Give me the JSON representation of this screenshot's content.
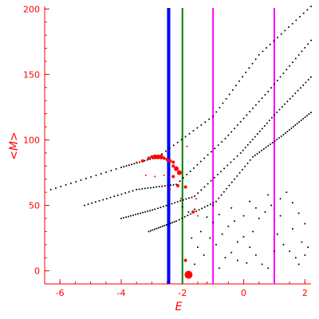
{
  "chart_data": {
    "type": "scatter",
    "xlabel": "E",
    "ylabel": "<M>",
    "xlim": [
      -6.5,
      2.2
    ],
    "ylim": [
      -10,
      202
    ],
    "x_ticks": [
      -6,
      -4,
      -2,
      0,
      2
    ],
    "y_ticks": [
      0,
      50,
      100,
      150,
      200
    ],
    "grid": false,
    "vertical_lines": [
      {
        "x": -2.45,
        "color": "#0000ff"
      },
      {
        "x": -2.0,
        "color": "#008000"
      },
      {
        "x": -1.0,
        "color": "#ff00ff"
      },
      {
        "x": 1.0,
        "color": "#ff00ff"
      }
    ],
    "series": [
      {
        "color": "#000000",
        "branches": [
          {
            "x": [
              -6.3,
              -4.0,
              -2.8,
              -1.0,
              0.5,
              2.2
            ],
            "y": [
              62,
              79,
              87,
              118,
              165,
              202
            ]
          },
          {
            "x": [
              -5.2,
              -3.5,
              -2.2,
              -0.6,
              0.8,
              2.2
            ],
            "y": [
              50,
              62,
              66,
              101,
              137,
              176
            ]
          },
          {
            "x": [
              -4.0,
              -2.9,
              -1.6,
              -0.1,
              1.0,
              2.2
            ],
            "y": [
              40,
              47,
              57,
              90,
              119,
              148
            ]
          },
          {
            "x": [
              -3.1,
              -2.2,
              -0.9,
              0.3,
              1.3,
              2.2
            ],
            "y": [
              30,
              38,
              53,
              87,
              104,
              121
            ]
          }
        ],
        "scattered_points": [
          [
            -2.0,
            49
          ],
          [
            -1.8,
            45
          ],
          [
            -1.6,
            47
          ],
          [
            -1.2,
            41
          ],
          [
            -1.0,
            37
          ],
          [
            -0.8,
            43
          ],
          [
            -1.4,
            30
          ],
          [
            -1.1,
            25
          ],
          [
            -0.9,
            20
          ],
          [
            -0.7,
            28
          ],
          [
            -0.5,
            34
          ],
          [
            -0.3,
            38
          ],
          [
            -0.6,
            10
          ],
          [
            -0.4,
            14
          ],
          [
            -0.2,
            22
          ],
          [
            0.0,
            26
          ],
          [
            0.2,
            18
          ],
          [
            0.4,
            12
          ],
          [
            0.1,
            6
          ],
          [
            0.3,
            30
          ],
          [
            0.5,
            40
          ],
          [
            0.7,
            45
          ],
          [
            0.9,
            50
          ],
          [
            1.2,
            55
          ],
          [
            1.4,
            60
          ],
          [
            1.6,
            52
          ],
          [
            1.8,
            44
          ],
          [
            2.0,
            36
          ],
          [
            1.1,
            28
          ],
          [
            1.3,
            20
          ],
          [
            1.5,
            15
          ],
          [
            1.7,
            10
          ],
          [
            1.9,
            22
          ],
          [
            2.1,
            18
          ],
          [
            0.6,
            5
          ],
          [
            0.8,
            2
          ],
          [
            -1.3,
            12
          ],
          [
            -1.6,
            5
          ],
          [
            -0.8,
            2
          ],
          [
            -0.2,
            8
          ],
          [
            0.4,
            48
          ],
          [
            0.8,
            58
          ],
          [
            1.2,
            42
          ],
          [
            1.6,
            32
          ],
          [
            2.0,
            12
          ],
          [
            -1.9,
            8
          ],
          [
            -1.7,
            25
          ],
          [
            -1.5,
            18
          ],
          [
            -0.4,
            48
          ],
          [
            0.0,
            42
          ],
          [
            1.0,
            15
          ],
          [
            1.8,
            5
          ],
          [
            -1.0,
            50
          ],
          [
            0.2,
            53
          ]
        ]
      },
      {
        "color": "#ff0000",
        "points": [
          [
            -3.1,
            86,
            2
          ],
          [
            -3.0,
            87,
            2
          ],
          [
            -2.9,
            87,
            3
          ],
          [
            -2.8,
            87,
            3
          ],
          [
            -2.7,
            87,
            3
          ],
          [
            -2.6,
            86,
            2
          ],
          [
            -2.5,
            85,
            2
          ],
          [
            -2.4,
            84,
            2
          ],
          [
            -2.3,
            83,
            2
          ],
          [
            -3.3,
            84,
            2
          ],
          [
            -3.5,
            83,
            1
          ],
          [
            -2.2,
            78,
            3
          ],
          [
            -2.1,
            75,
            3
          ],
          [
            -2.3,
            80,
            2
          ],
          [
            -3.2,
            73,
            1
          ],
          [
            -2.9,
            72,
            1
          ],
          [
            -2.6,
            73,
            1
          ],
          [
            -2.3,
            72,
            2
          ],
          [
            -2.15,
            65,
            2
          ],
          [
            -1.9,
            64,
            2
          ],
          [
            -1.7,
            56,
            1
          ],
          [
            -2.05,
            55,
            1
          ],
          [
            -1.5,
            42,
            1
          ],
          [
            -1.65,
            45,
            2
          ],
          [
            -1.9,
            8,
            2
          ],
          [
            -1.8,
            -3,
            5
          ],
          [
            -1.2,
            -9,
            1
          ],
          [
            -1.85,
            95,
            1
          ],
          [
            -1.55,
            55,
            1
          ],
          [
            -2.4,
            62,
            1
          ]
        ]
      }
    ]
  }
}
